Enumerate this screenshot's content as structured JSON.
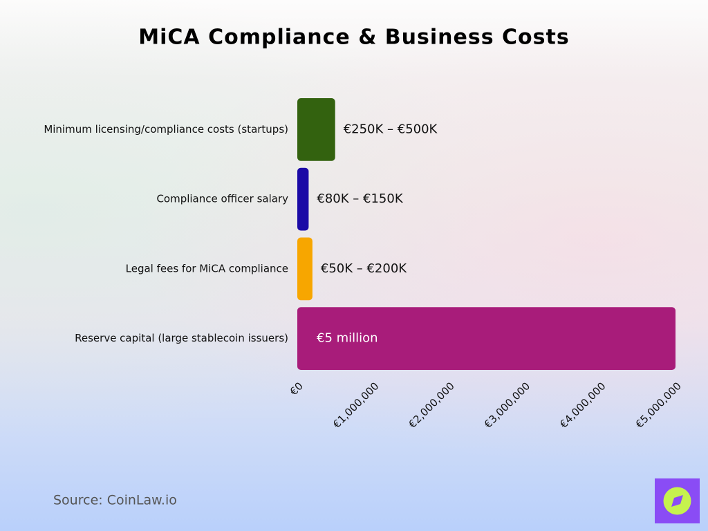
{
  "chart_data": {
    "type": "bar",
    "orientation": "horizontal",
    "title": "MiCA Compliance & Business Costs",
    "categories": [
      "Minimum licensing/compliance costs (startups)",
      "Compliance officer salary",
      "Legal fees for MiCA compliance",
      "Reserve capital (large stablecoin issuers)"
    ],
    "values": [
      500000,
      150000,
      200000,
      5000000
    ],
    "value_labels": [
      "€250K – €500K",
      "€80K – €150K",
      "€50K – €200K",
      "€5 million"
    ],
    "colors": [
      "#33620f",
      "#1b0aa6",
      "#f7a600",
      "#a81c7a"
    ],
    "xlim": [
      0,
      5000000
    ],
    "xticks": [
      {
        "value": 0,
        "label": "€0"
      },
      {
        "value": 1000000,
        "label": "€1,000,000"
      },
      {
        "value": 2000000,
        "label": "€2,000,000"
      },
      {
        "value": 3000000,
        "label": "€3,000,000"
      },
      {
        "value": 4000000,
        "label": "€4,000,000"
      },
      {
        "value": 5000000,
        "label": "€5,000,000"
      }
    ],
    "grid": false,
    "source": "Source: CoinLaw.io"
  }
}
